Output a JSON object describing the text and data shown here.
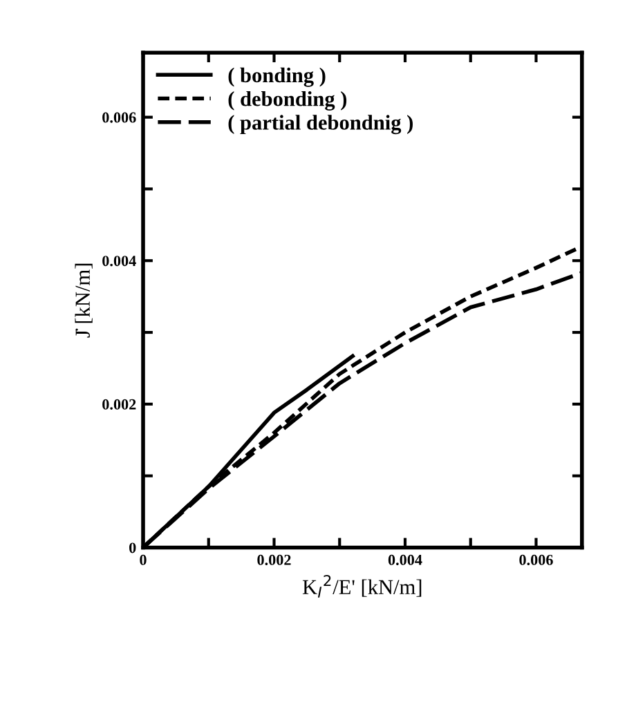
{
  "chart_data": {
    "type": "line",
    "xlabel": "K$_{I}$$^{2}$/E' [kN/m]",
    "ylabel": "J̇ [kN/m]",
    "xlim": [
      0,
      0.0067
    ],
    "ylim": [
      0,
      0.0069
    ],
    "xticks": [
      0,
      {
        "value": 0.001,
        "label": null
      },
      0.002,
      {
        "value": 0.003,
        "label": null
      },
      0.004,
      {
        "value": 0.005,
        "label": null
      },
      0.006
    ],
    "yticks": [
      0,
      {
        "value": 0.001,
        "label": null
      },
      0.002,
      {
        "value": 0.003,
        "label": null
      },
      0.004,
      {
        "value": 0.005,
        "label": null
      },
      0.006
    ],
    "legend": "top left",
    "grid": false,
    "series": [
      {
        "name": "( bonding )",
        "color": "#000000",
        "line_style": "solid",
        "x": [
          0,
          0.001,
          0.002,
          0.0025,
          0.0032
        ],
        "values": [
          0,
          0.00085,
          0.00188,
          0.0022,
          0.00267
        ]
      },
      {
        "name": "( debonding )",
        "color": "#000000",
        "line_style": "dotted",
        "x": [
          0,
          0.001,
          0.002,
          0.003,
          0.004,
          0.005,
          0.006,
          0.0067
        ],
        "values": [
          0,
          0.00085,
          0.0016,
          0.00242,
          0.003,
          0.0035,
          0.0039,
          0.0042
        ]
      },
      {
        "name": "( partial debondnig )",
        "color": "#000000",
        "line_style": "dashed",
        "x": [
          0,
          0.001,
          0.002,
          0.003,
          0.004,
          0.005,
          0.006,
          0.0067
        ],
        "values": [
          0,
          0.00082,
          0.00155,
          0.00229,
          0.00285,
          0.00335,
          0.0036,
          0.00383
        ]
      }
    ]
  }
}
